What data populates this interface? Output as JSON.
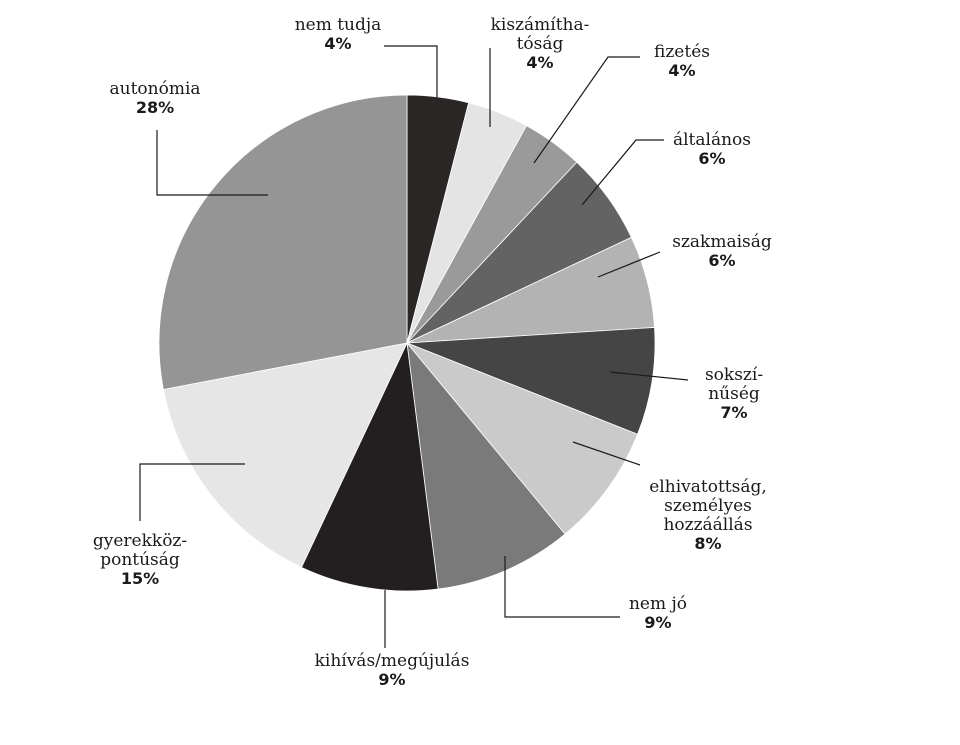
{
  "chart_data": {
    "type": "pie",
    "title": "",
    "start_angle_deg": 0,
    "direction": "clockwise",
    "slices": [
      {
        "name_lines": [
          "nem tudja"
        ],
        "label": "4%",
        "value": 4,
        "color": "#2b2626"
      },
      {
        "name_lines": [
          "kiszámítha-",
          "tóság"
        ],
        "label": "4%",
        "value": 4,
        "color": "#e4e4e4"
      },
      {
        "name_lines": [
          "fizetés"
        ],
        "label": "4%",
        "value": 4,
        "color": "#9a9a9a"
      },
      {
        "name_lines": [
          "általános"
        ],
        "label": "6%",
        "value": 6,
        "color": "#636363"
      },
      {
        "name_lines": [
          "szakmaiság"
        ],
        "label": "6%",
        "value": 6,
        "color": "#b3b3b3"
      },
      {
        "name_lines": [
          "sokszí-",
          "nűség"
        ],
        "label": "7%",
        "value": 7,
        "color": "#454545"
      },
      {
        "name_lines": [
          "elhivatottság,",
          "személyes",
          "hozzáállás"
        ],
        "label": "8%",
        "value": 8,
        "color": "#cacaca"
      },
      {
        "name_lines": [
          "nem jó"
        ],
        "label": "9%",
        "value": 9,
        "color": "#7a7a7a"
      },
      {
        "name_lines": [
          "kihívás/megújulás"
        ],
        "label": "9%",
        "value": 9,
        "color": "#231f20"
      },
      {
        "name_lines": [
          "gyerekköz-",
          "pontúság"
        ],
        "label": "15%",
        "value": 15,
        "color": "#e6e6e6"
      },
      {
        "name_lines": [
          "autonómia"
        ],
        "label": "28%",
        "value": 28,
        "color": "#959595"
      }
    ]
  }
}
